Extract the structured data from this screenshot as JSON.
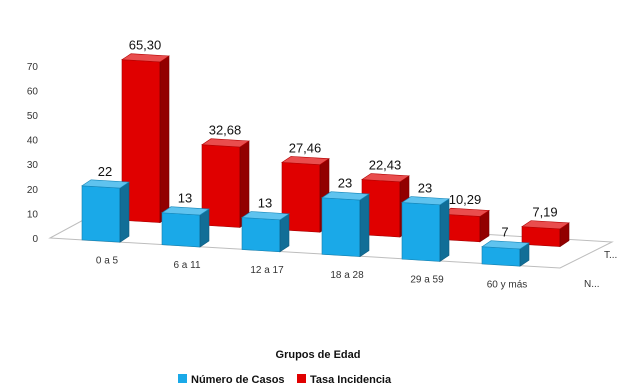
{
  "chart_data": {
    "type": "bar",
    "title": "",
    "xlabel": "Grupos de Edad",
    "ylabel": "",
    "ylim": [
      0,
      70
    ],
    "yticks": [
      0,
      10,
      20,
      30,
      40,
      50,
      60,
      70
    ],
    "categories": [
      "0 a 5",
      "6 a 11",
      "12 a 17",
      "18 a 28",
      "29 a 59",
      "60 y más"
    ],
    "series": [
      {
        "name": "Número de Casos",
        "depth_label": "N...",
        "color": "#1aa9e8",
        "values": [
          22,
          13,
          13,
          23,
          23,
          7
        ],
        "labels": [
          "22",
          "13",
          "13",
          "23",
          "23",
          "7"
        ]
      },
      {
        "name": "Tasa Incidencia",
        "depth_label": "T...",
        "color": "#e00000",
        "values": [
          65.3,
          32.68,
          27.46,
          22.43,
          10.29,
          7.19
        ],
        "labels": [
          "65,30",
          "32,68",
          "27,46",
          "22,43",
          "10,29",
          "7,19"
        ]
      }
    ],
    "grid": false,
    "legend": "bottom",
    "style": "3d"
  }
}
